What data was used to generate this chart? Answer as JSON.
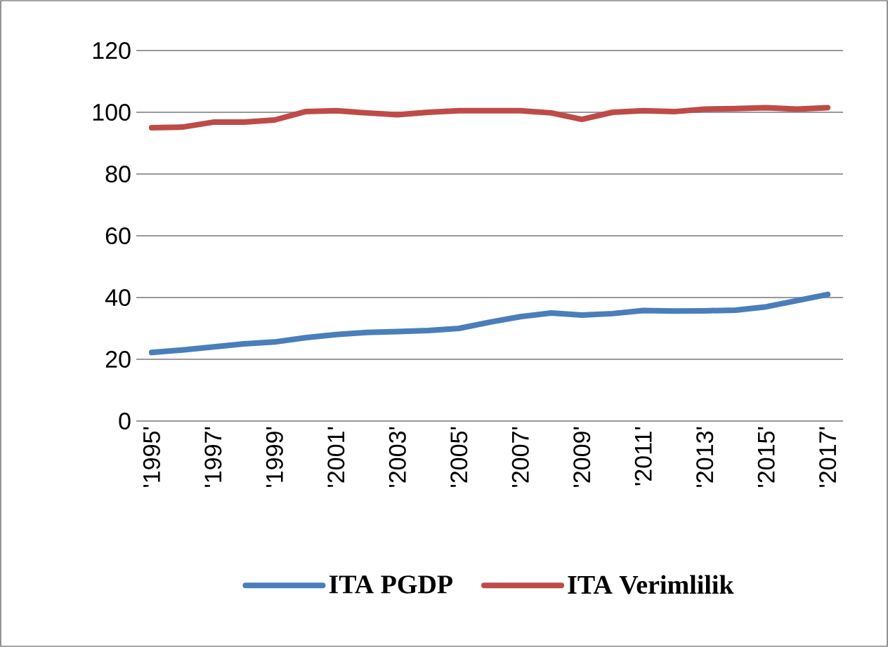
{
  "chart_data": {
    "type": "line",
    "categories": [
      "'1995'",
      null,
      "'1997'",
      null,
      "'1999'",
      null,
      "'2001'",
      null,
      "'2003'",
      null,
      "'2005'",
      null,
      "'2007'",
      null,
      "'2009'",
      null,
      "'2011'",
      null,
      "'2013'",
      null,
      "'2015'",
      null,
      "'2017'"
    ],
    "series": [
      {
        "name": "ITA PGDP",
        "color": "#4a7ebb",
        "values": [
          22.2,
          23,
          24,
          25,
          25.6,
          27,
          28,
          28.7,
          29,
          29.3,
          30,
          32,
          33.8,
          35,
          34.3,
          34.8,
          35.8,
          35.6,
          35.7,
          35.9,
          37,
          39,
          41
        ]
      },
      {
        "name": "ITA Verimlilik",
        "color": "#be4b48",
        "values": [
          95,
          95.2,
          96.8,
          96.8,
          97.5,
          100.2,
          100.5,
          99.8,
          99.2,
          100,
          100.5,
          100.5,
          100.5,
          99.8,
          97.7,
          100,
          100.5,
          100.2,
          101,
          101.2,
          101.5,
          101,
          101.5
        ]
      }
    ],
    "ylim": [
      0,
      120
    ],
    "yticks": [
      0,
      20,
      40,
      60,
      80,
      100,
      120
    ],
    "grid": "y",
    "legend": "bottom",
    "marker": "none",
    "line_style": "solid"
  }
}
